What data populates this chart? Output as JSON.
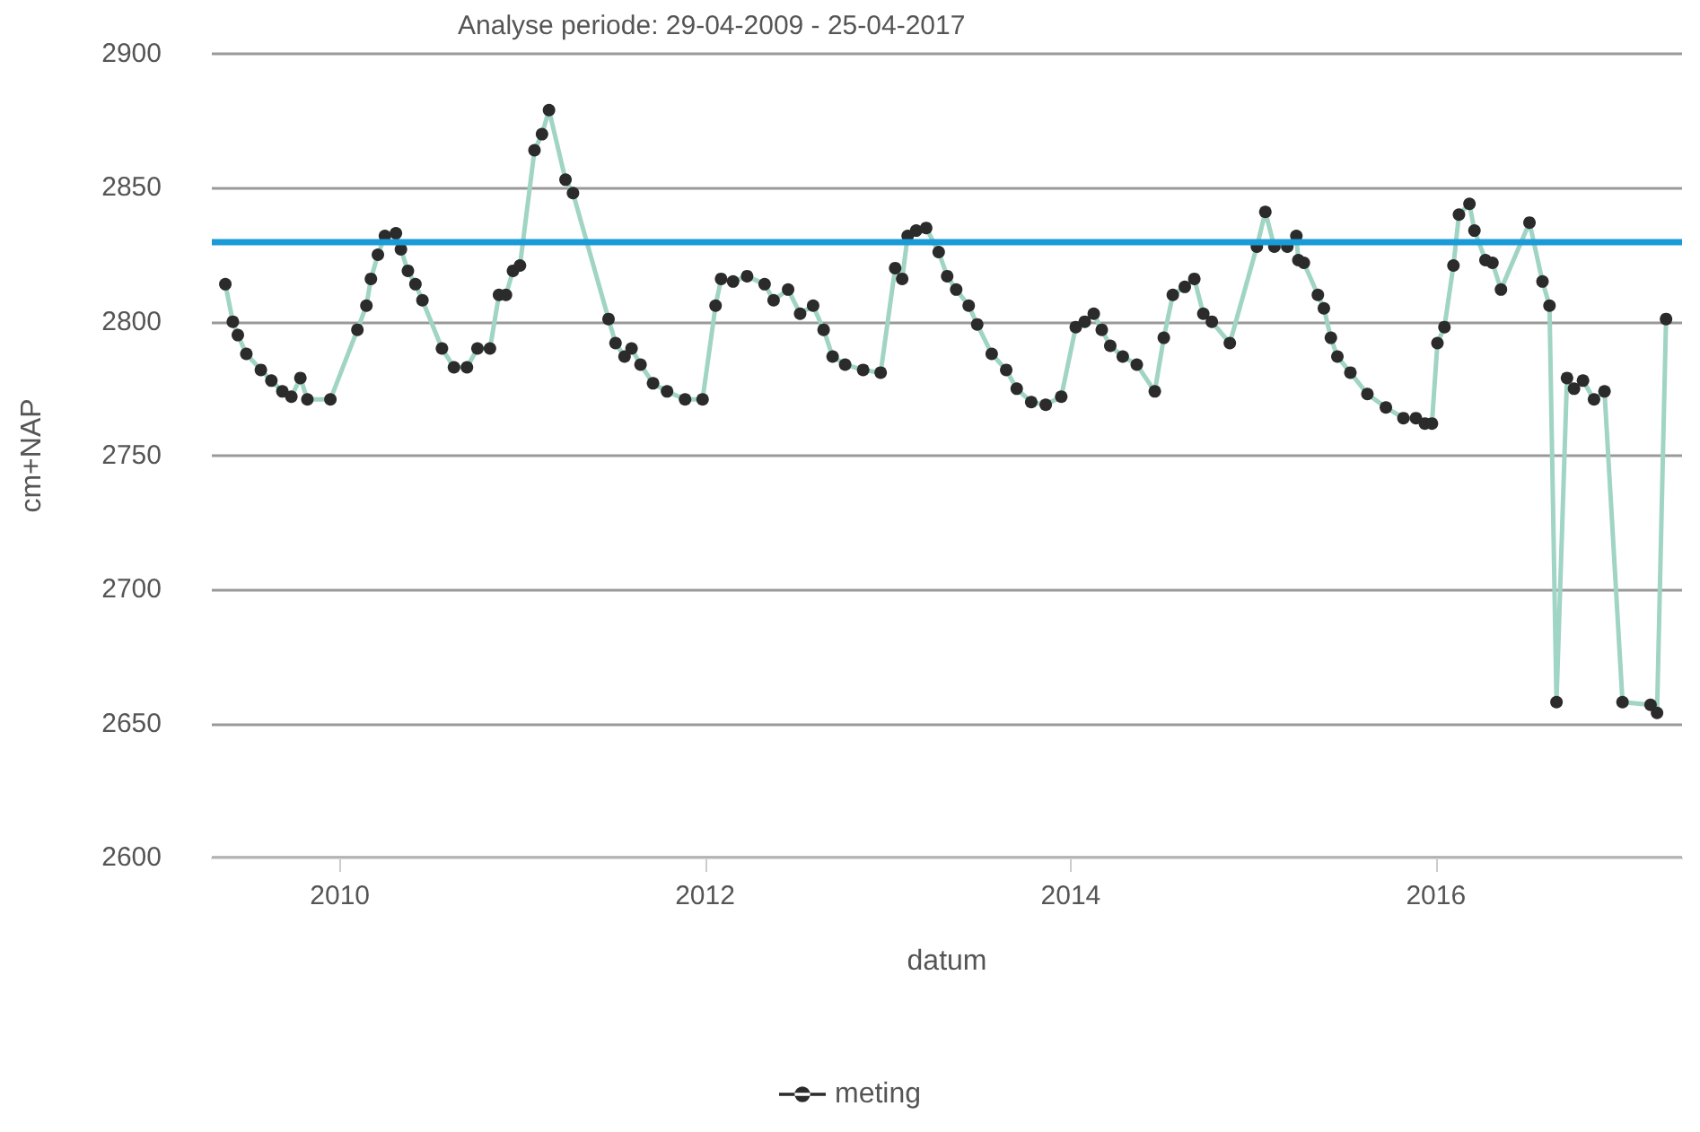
{
  "chart_data": {
    "type": "line",
    "title": "Analyse periode: 29-04-2009 - 25-04-2017",
    "xlabel": "datum",
    "ylabel": "cm+NAP",
    "x": [
      "2009-05-17",
      "2009-06-01",
      "2009-06-11",
      "2009-06-28",
      "2009-07-27",
      "2009-08-17",
      "2009-09-08",
      "2009-09-26",
      "2009-10-14",
      "2009-10-28",
      "2009-12-13",
      "2010-02-05",
      "2010-02-23",
      "2010-03-04",
      "2010-03-18",
      "2010-04-01",
      "2010-04-23",
      "2010-05-03",
      "2010-05-17",
      "2010-06-01",
      "2010-06-15",
      "2010-07-24",
      "2010-08-17",
      "2010-09-12",
      "2010-10-03",
      "2010-10-28",
      "2010-11-15",
      "2010-11-29",
      "2010-12-13",
      "2010-12-27",
      "2011-01-25",
      "2011-02-09",
      "2011-02-23",
      "2011-03-28",
      "2011-04-12",
      "2011-06-22",
      "2011-07-06",
      "2011-07-24",
      "2011-08-07",
      "2011-08-25",
      "2011-09-19",
      "2011-10-17",
      "2011-11-22",
      "2011-12-27",
      "2012-01-22",
      "2012-02-02",
      "2012-02-26",
      "2012-03-25",
      "2012-04-29",
      "2012-05-17",
      "2012-06-15",
      "2012-07-09",
      "2012-08-04",
      "2012-08-25",
      "2012-09-12",
      "2012-10-07",
      "2012-11-12",
      "2012-12-17",
      "2013-01-15",
      "2013-01-29",
      "2013-02-09",
      "2013-02-26",
      "2013-03-18",
      "2013-04-12",
      "2013-04-29",
      "2013-05-17",
      "2013-06-11",
      "2013-06-28",
      "2013-07-27",
      "2013-08-25",
      "2013-09-15",
      "2013-10-14",
      "2013-11-12",
      "2013-12-13",
      "2014-01-11",
      "2014-01-29",
      "2014-02-16",
      "2014-03-04",
      "2014-03-21",
      "2014-04-15",
      "2014-05-13",
      "2014-06-18",
      "2014-07-06",
      "2014-07-24",
      "2014-08-17",
      "2014-09-05",
      "2014-09-23",
      "2014-10-10",
      "2014-11-15",
      "2015-01-08",
      "2015-01-25",
      "2015-02-12",
      "2015-03-10",
      "2015-03-28",
      "2015-04-01",
      "2015-04-12",
      "2015-05-10",
      "2015-05-22",
      "2015-06-05",
      "2015-06-18",
      "2015-07-14",
      "2015-08-17",
      "2015-09-23",
      "2015-10-28",
      "2015-11-22",
      "2015-12-10",
      "2015-12-24",
      "2016-01-04",
      "2016-01-18",
      "2016-02-05",
      "2016-02-16",
      "2016-03-08",
      "2016-03-18",
      "2016-04-09",
      "2016-04-23",
      "2016-05-10",
      "2016-07-06",
      "2016-08-01",
      "2016-08-15",
      "2016-08-29",
      "2016-09-19",
      "2016-10-03",
      "2016-10-21",
      "2016-11-12",
      "2016-12-03",
      "2017-01-08",
      "2017-03-05",
      "2017-03-18",
      "2017-04-05"
    ],
    "series": [
      {
        "name": "meting",
        "color": "#a0d4c4",
        "values": [
          2814,
          2800,
          2795,
          2788,
          2782,
          2778,
          2774,
          2772,
          2779,
          2771,
          2771,
          2797,
          2806,
          2816,
          2825,
          2832,
          2833,
          2827,
          2819,
          2814,
          2808,
          2790,
          2783,
          2783,
          2790,
          2790,
          2810,
          2810,
          2819,
          2821,
          2864,
          2870,
          2879,
          2853,
          2848,
          2801,
          2792,
          2787,
          2790,
          2784,
          2777,
          2774,
          2771,
          2771,
          2806,
          2816,
          2815,
          2817,
          2814,
          2808,
          2812,
          2803,
          2806,
          2797,
          2787,
          2784,
          2782,
          2781,
          2820,
          2816,
          2832,
          2834,
          2835,
          2826,
          2817,
          2812,
          2806,
          2799,
          2788,
          2782,
          2775,
          2770,
          2769,
          2772,
          2798,
          2800,
          2803,
          2797,
          2791,
          2787,
          2784,
          2774,
          2794,
          2810,
          2813,
          2816,
          2803,
          2800,
          2792,
          2828,
          2841,
          2828,
          2828,
          2832,
          2823,
          2822,
          2810,
          2805,
          2794,
          2787,
          2781,
          2773,
          2768,
          2764,
          2764,
          2762,
          2762,
          2792,
          2798,
          2821,
          2840,
          2844,
          2834,
          2823,
          2822,
          2812,
          2837,
          2815,
          2806,
          2658,
          2779,
          2775,
          2778,
          2771,
          2774,
          2658,
          2657,
          2654,
          2801
        ]
      }
    ],
    "ref_lines": [
      {
        "axis": "y",
        "value": 2830,
        "color": "#1a9bd7",
        "line_style": "solid"
      }
    ],
    "xlim": [
      "2009-04-20",
      "2017-05-07"
    ],
    "xticks": [
      "2010",
      "2012",
      "2014",
      "2016"
    ],
    "ylim": [
      2600,
      2900
    ],
    "yticks": [
      2600,
      2650,
      2700,
      2750,
      2800,
      2850,
      2900
    ],
    "grid": "y",
    "legend": "bottom",
    "marker": "circle",
    "line_style": "solid"
  }
}
